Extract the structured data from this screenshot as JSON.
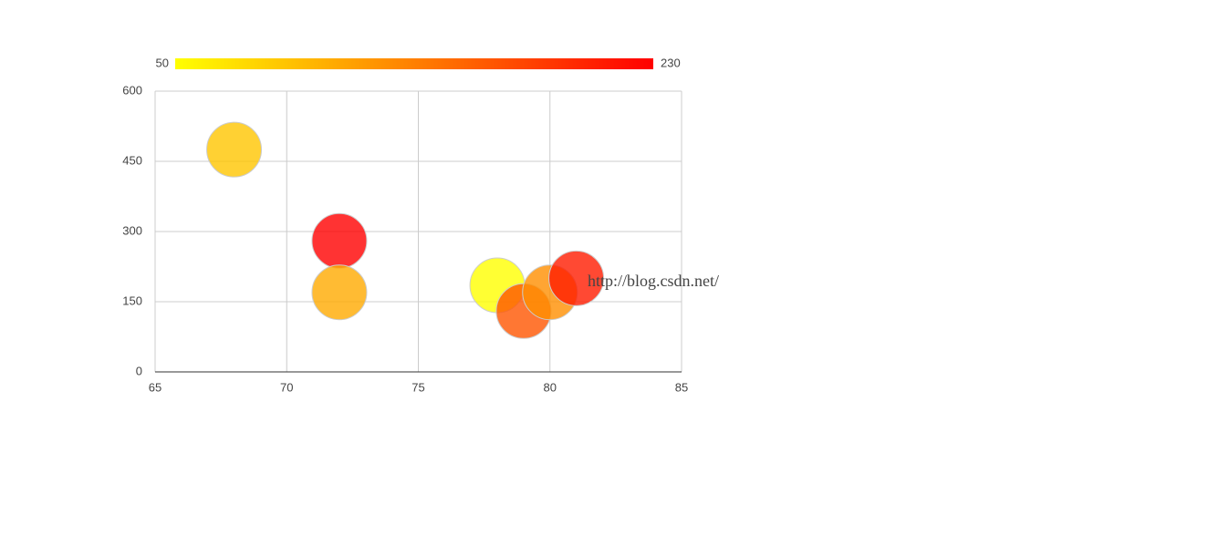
{
  "chart_data": {
    "type": "bubble",
    "x": [
      68,
      72,
      72,
      78,
      79,
      80,
      81
    ],
    "values": [
      475,
      280,
      170,
      185,
      130,
      170,
      200
    ],
    "color_values": [
      90,
      230,
      110,
      50,
      170,
      130,
      210
    ],
    "xlim": [
      65,
      85
    ],
    "xticks": [
      65,
      70,
      75,
      80,
      85
    ],
    "ylim": [
      0,
      600
    ],
    "yticks": [
      0,
      150,
      300,
      450,
      600
    ],
    "grid": true,
    "color_axis": {
      "range": [
        50,
        230
      ],
      "colors": [
        "#ffff00",
        "#ff0000"
      ]
    },
    "watermark": "http://blog.csdn.net/"
  }
}
